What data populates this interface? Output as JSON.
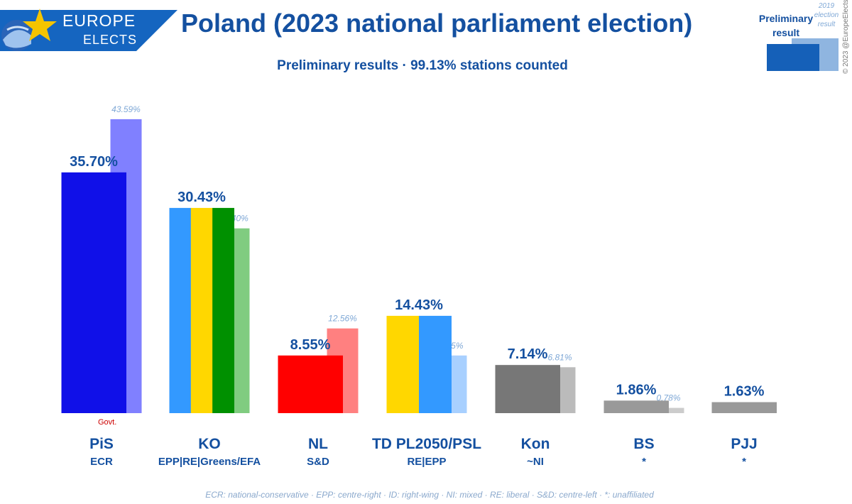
{
  "logo": {
    "line1": "EUROPE",
    "line2": "ELECTS"
  },
  "colors": {
    "title": "#1450a0",
    "logo_band": "#1565c0",
    "footnote": "#8aa8cc",
    "govt": "#cc0000"
  },
  "legend": {
    "current_label": "Preliminary result",
    "previous_label": "2019 election result"
  },
  "copyright": "© 2023 @EuropeElects",
  "govt_label": "Govt.",
  "footnote": "ECR: national-conservative · EPP: centre-right · ID: right-wing · NI: mixed · RE: liberal · S&D: centre-left · *: unaffiliated",
  "chart_data": {
    "type": "bar",
    "title": "Poland (2023 national parliament election)",
    "subtitle": "Preliminary results · 99.13% stations counted",
    "categories": [
      "PiS",
      "KO",
      "NL",
      "TD PL2050/PSL",
      "Kon",
      "BS",
      "PJJ"
    ],
    "groups": [
      "ECR",
      "EPP|RE|Greens/EFA",
      "S&D",
      "RE|EPP",
      "~NI",
      "*",
      "*"
    ],
    "series": [
      {
        "name": "Preliminary result",
        "values": [
          35.7,
          30.43,
          8.55,
          14.43,
          7.14,
          1.86,
          1.63
        ],
        "labels": [
          "35.70%",
          "30.43%",
          "8.55%",
          "14.43%",
          "7.14%",
          "1.86%",
          "1.63%"
        ],
        "colors": [
          [
            "#1010e8"
          ],
          [
            "#3399ff",
            "#ffd700",
            "#009000"
          ],
          [
            "#ff0000"
          ],
          [
            "#ffd700",
            "#3399ff"
          ],
          [
            "#777777"
          ],
          [
            "#999999"
          ],
          [
            "#999999"
          ]
        ]
      },
      {
        "name": "2019 election result",
        "values": [
          43.59,
          27.4,
          12.56,
          8.55,
          6.81,
          0.78,
          null
        ],
        "labels": [
          "43.59%",
          "27.40%",
          "12.56%",
          "8.55%",
          "6.81%",
          "0.78%",
          ""
        ],
        "colors": [
          "#8080ff",
          "#80cc80",
          "#ff8080",
          "#a8d0ff",
          "#bbbbbb",
          "#cccccc",
          ""
        ]
      }
    ],
    "ylim": [
      0,
      45
    ]
  }
}
